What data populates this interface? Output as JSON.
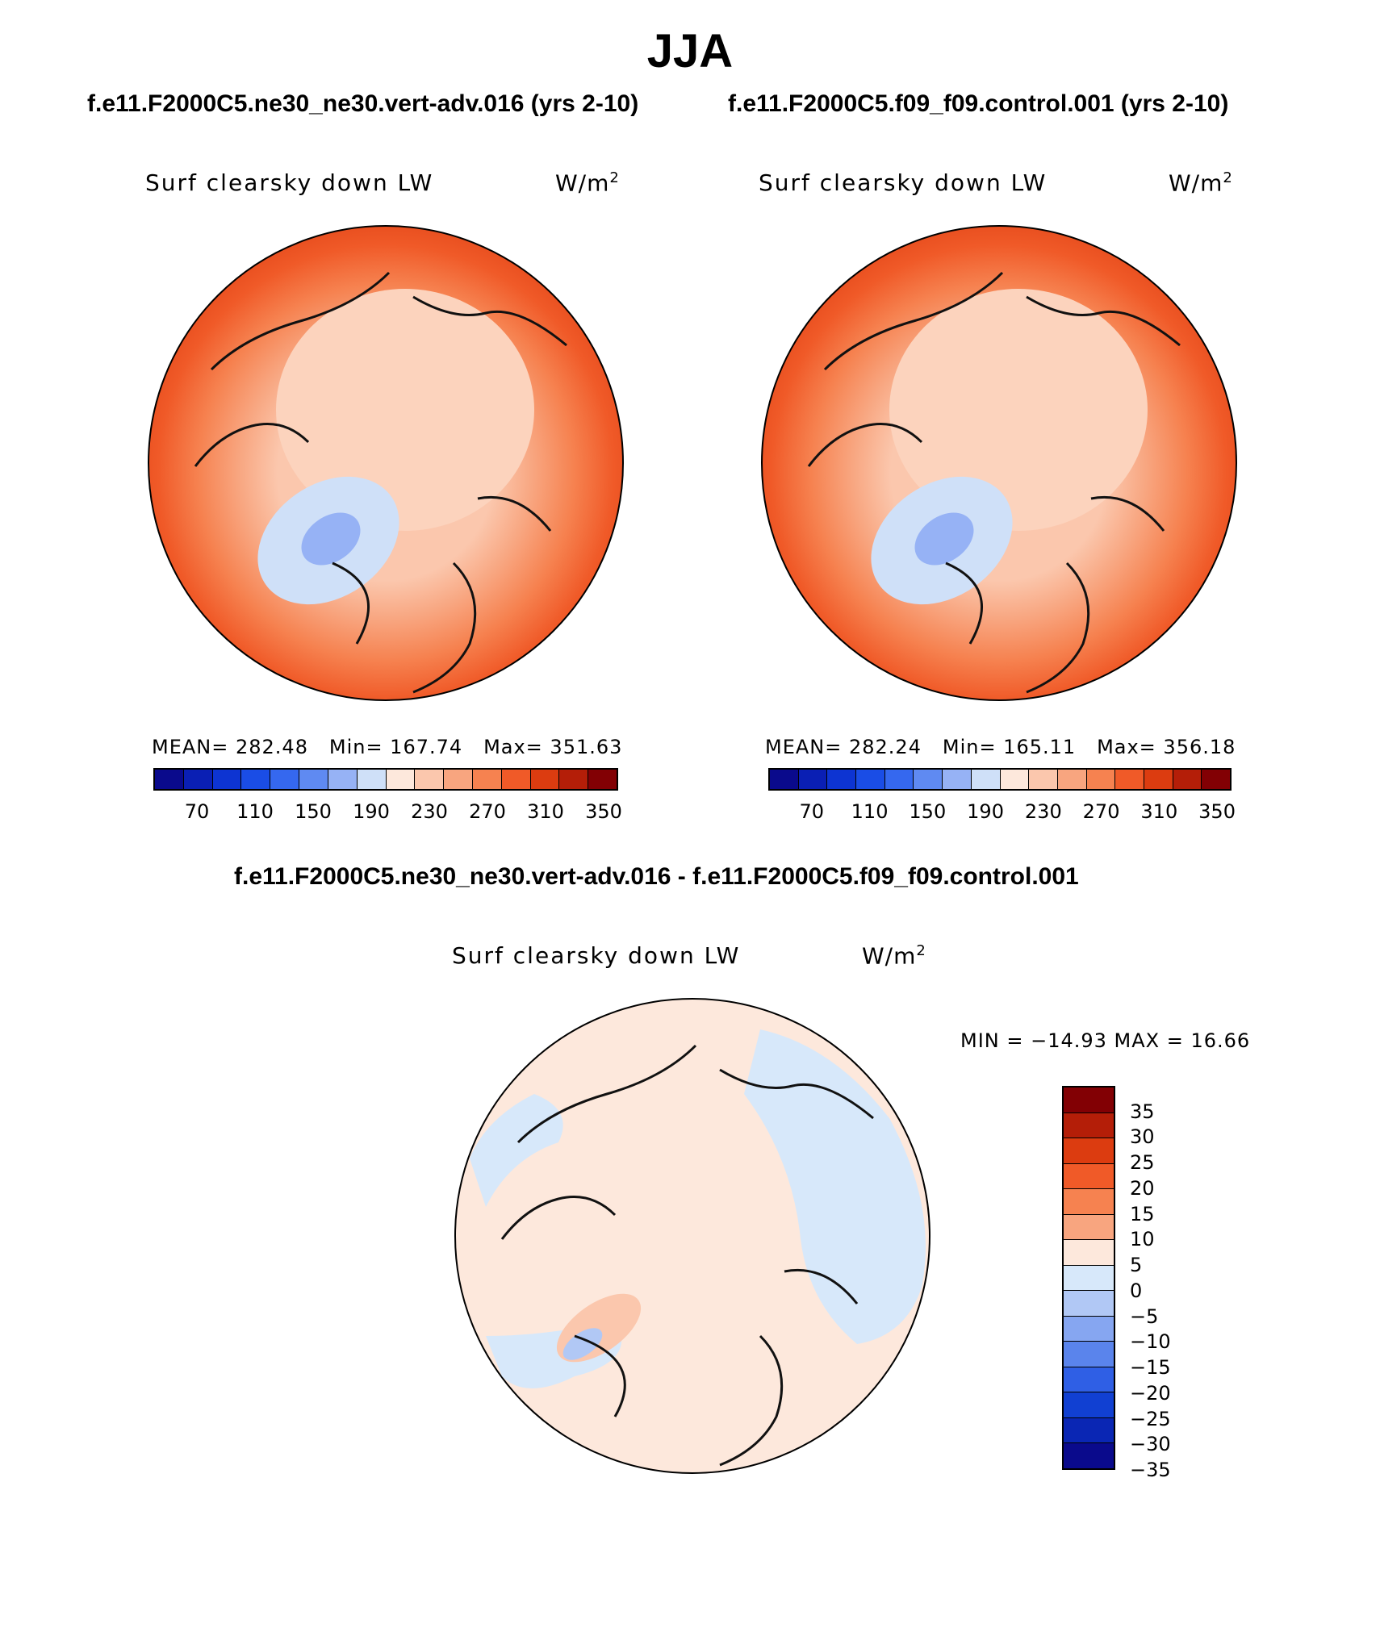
{
  "page_title": "JJA",
  "left_panel": {
    "case_title": "f.e11.F2000C5.ne30_ne30.vert-adv.016 (yrs 2-10)",
    "variable": "Surf clearsky down LW",
    "units_base": "W/m",
    "units_exp": "2",
    "stats": {
      "mean": "MEAN= 282.48",
      "min": "Min= 167.74",
      "max": "Max= 351.63"
    }
  },
  "right_panel": {
    "case_title": "f.e11.F2000C5.f09_f09.control.001 (yrs 2-10)",
    "variable": "Surf clearsky down LW",
    "units_base": "W/m",
    "units_exp": "2",
    "stats": {
      "mean": "MEAN= 282.24",
      "min": "Min= 165.11",
      "max": "Max= 356.18"
    }
  },
  "diff_panel": {
    "case_title": "f.e11.F2000C5.ne30_ne30.vert-adv.016 - f.e11.F2000C5.f09_f09.control.001",
    "variable": "Surf clearsky down LW",
    "units_base": "W/m",
    "units_exp": "2",
    "minmax": "MIN = −14.93 MAX =  16.66"
  },
  "colorbar_abs": {
    "colors": [
      "#0a0a8c",
      "#0a1fb4",
      "#0d34d2",
      "#1a4de6",
      "#3568ef",
      "#5f8af2",
      "#96b2f5",
      "#cfe0f8",
      "#fde8dc",
      "#fbc7ad",
      "#f8a57f",
      "#f68250",
      "#f05a28",
      "#dc3c10",
      "#b41e08",
      "#820004"
    ],
    "ticks": [
      "70",
      "110",
      "150",
      "190",
      "230",
      "270",
      "310",
      "350"
    ]
  },
  "colorbar_diff": {
    "colors": [
      "#820004",
      "#b41e08",
      "#dc3c10",
      "#f05a28",
      "#f68250",
      "#f8a57f",
      "#fde8dc",
      "#d7e8fa",
      "#b1c8f5",
      "#86a6f1",
      "#5a84ec",
      "#2f5fe5",
      "#1140d2",
      "#0a26b4",
      "#0a0a8c"
    ],
    "ticks": [
      "35",
      "30",
      "25",
      "20",
      "15",
      "10",
      "5",
      "0",
      "−5",
      "−10",
      "−15",
      "−20",
      "−25",
      "−30",
      "−35"
    ]
  },
  "chart_data": [
    {
      "type": "map",
      "projection": "north polar stereographic",
      "title": "f.e11.F2000C5.ne30_ne30.vert-adv.016 (yrs 2-10)",
      "variable": "Surf clearsky down LW",
      "units": "W/m2",
      "season": "JJA",
      "mean": 282.48,
      "min": 167.74,
      "max": 351.63,
      "contour_levels": [
        70,
        90,
        110,
        130,
        150,
        170,
        190,
        210,
        230,
        250,
        270,
        290,
        310,
        330,
        350
      ]
    },
    {
      "type": "map",
      "projection": "north polar stereographic",
      "title": "f.e11.F2000C5.f09_f09.control.001 (yrs 2-10)",
      "variable": "Surf clearsky down LW",
      "units": "W/m2",
      "season": "JJA",
      "mean": 282.24,
      "min": 165.11,
      "max": 356.18,
      "contour_levels": [
        70,
        90,
        110,
        130,
        150,
        170,
        190,
        210,
        230,
        250,
        270,
        290,
        310,
        330,
        350
      ]
    },
    {
      "type": "map",
      "projection": "north polar stereographic",
      "title": "f.e11.F2000C5.ne30_ne30.vert-adv.016 - f.e11.F2000C5.f09_f09.control.001",
      "variable": "Surf clearsky down LW",
      "units": "W/m2",
      "season": "JJA",
      "min": -14.93,
      "max": 16.66,
      "contour_levels": [
        -35,
        -30,
        -25,
        -20,
        -15,
        -10,
        -5,
        0,
        5,
        10,
        15,
        20,
        25,
        30,
        35
      ]
    }
  ]
}
